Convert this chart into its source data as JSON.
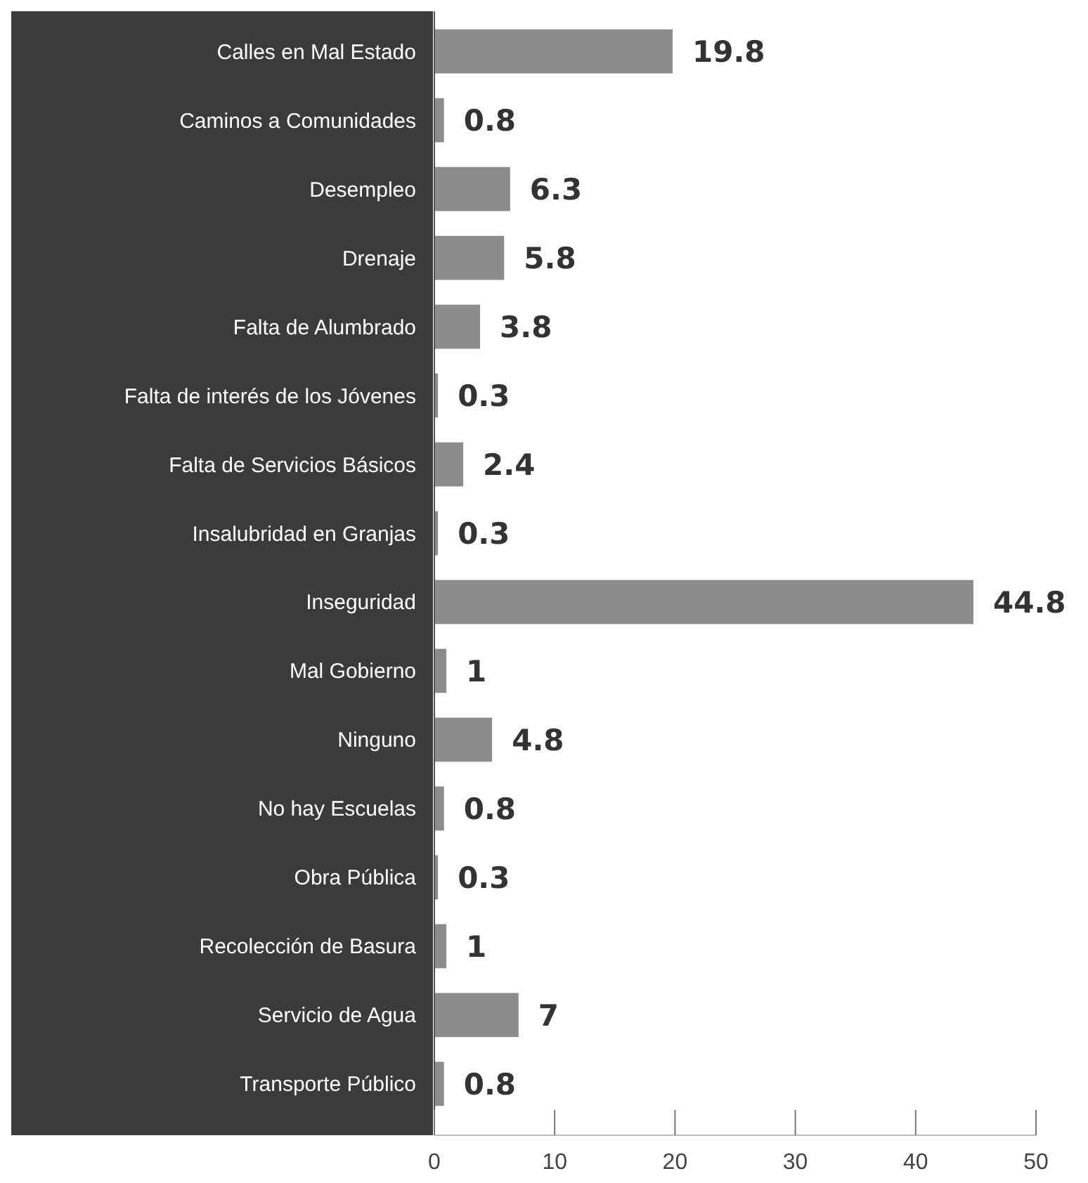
{
  "chart_data": {
    "type": "bar",
    "orientation": "horizontal",
    "categories": [
      "Calles en Mal Estado",
      "Caminos a Comunidades",
      "Desempleo",
      "Drenaje",
      "Falta de Alumbrado",
      "Falta de interés de los Jóvenes",
      "Falta de Servicios Básicos",
      "Insalubridad en Granjas",
      "Inseguridad",
      "Mal Gobierno",
      "Ninguno",
      "No hay Escuelas",
      "Obra Pública",
      "Recolección de Basura",
      "Servicio de Agua",
      "Transporte Público"
    ],
    "values": [
      19.8,
      0.8,
      6.3,
      5.8,
      3.8,
      0.3,
      2.4,
      0.3,
      44.8,
      1,
      4.8,
      0.8,
      0.3,
      1,
      7,
      0.8
    ],
    "color": "#8c8c8c",
    "xlim": [
      0,
      50
    ],
    "xticks": [
      0,
      10,
      20,
      30,
      40,
      50
    ],
    "grid": false,
    "data_labels": true
  }
}
